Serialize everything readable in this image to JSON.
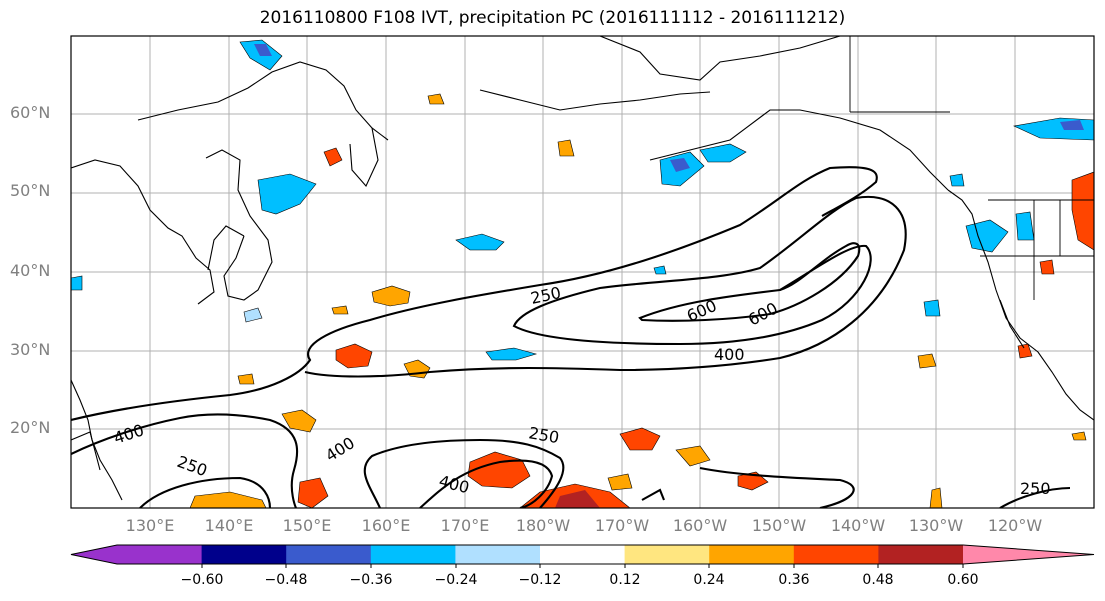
{
  "title": "2016110800 F108 IVT, precipitation PC (2016111112 - 2016111212)",
  "lat_labels": [
    "60°N",
    "50°N",
    "40°N",
    "30°N",
    "20°N"
  ],
  "lon_labels": [
    "130°E",
    "140°E",
    "150°E",
    "160°E",
    "170°E",
    "180°W",
    "170°W",
    "160°W",
    "150°W",
    "140°W",
    "130°W",
    "120°W"
  ],
  "contour_labels": [
    "250",
    "600",
    "600",
    "400",
    "400",
    "400",
    "250",
    "250",
    "400",
    "250"
  ],
  "colorbar": {
    "tick_labels": [
      "−0.60",
      "−0.48",
      "−0.36",
      "−0.24",
      "−0.12",
      "0.12",
      "0.24",
      "0.36",
      "0.48",
      "0.60"
    ],
    "colors": [
      "#9932CC",
      "#00008B",
      "#3A5BCD",
      "#00BFFF",
      "#B0E0FF",
      "#FFFFFF",
      "#FFE680",
      "#FFA500",
      "#FF4500",
      "#B22222",
      "#FF88AA"
    ]
  }
}
